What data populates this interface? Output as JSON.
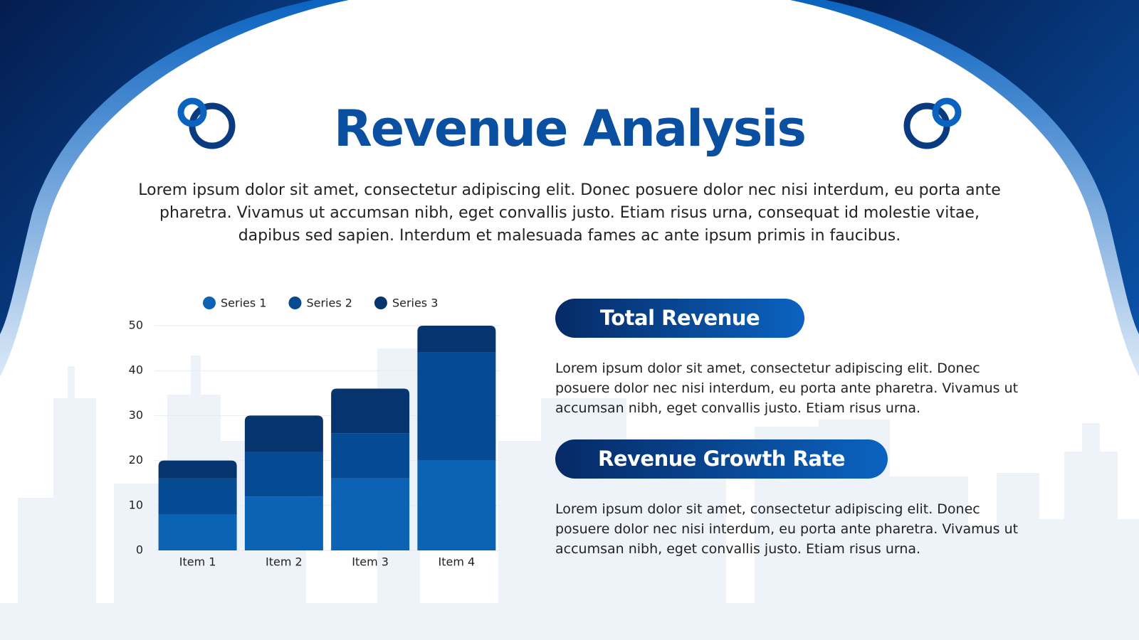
{
  "title": "Revenue Analysis",
  "intro": "Lorem ipsum dolor sit amet, consectetur adipiscing elit. Donec posuere dolor nec nisi interdum, eu porta ante pharetra. Vivamus ut accumsan nibh, eget convallis justo. Etiam risus urna, consequat id molestie vitae, dapibus sed sapien. Interdum et malesuada fames ac ante ipsum primis in faucibus.",
  "chart_data": {
    "type": "bar",
    "stacked": true,
    "categories": [
      "Item 1",
      "Item 2",
      "Item 3",
      "Item 4"
    ],
    "series": [
      {
        "name": "Series 1",
        "color": "#0a63b5",
        "values": [
          8,
          12,
          16,
          20
        ]
      },
      {
        "name": "Series 2",
        "color": "#064a94",
        "values": [
          8,
          10,
          10,
          24
        ]
      },
      {
        "name": "Series 3",
        "color": "#05346e",
        "values": [
          4,
          8,
          10,
          6
        ]
      }
    ],
    "ylim": [
      0,
      50
    ],
    "yticks": [
      0,
      10,
      20,
      30,
      40,
      50
    ],
    "grid": true,
    "legend": "top"
  },
  "panels": [
    {
      "heading": "Total Revenue",
      "body": "Lorem ipsum dolor sit amet, consectetur adipiscing elit. Donec posuere dolor nec nisi interdum, eu porta ante pharetra. Vivamus ut accumsan nibh, eget convallis justo. Etiam risus urna."
    },
    {
      "heading": "Revenue Growth Rate",
      "body": "Lorem ipsum dolor sit amet, consectetur adipiscing elit. Donec posuere dolor nec nisi interdum, eu porta ante pharetra. Vivamus ut accumsan nibh, eget convallis justo. Etiam risus urna."
    }
  ]
}
